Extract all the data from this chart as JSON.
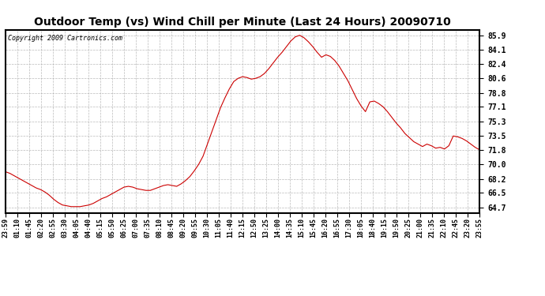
{
  "title": "Outdoor Temp (vs) Wind Chill per Minute (Last 24 Hours) 20090710",
  "copyright_text": "Copyright 2009 Cartronics.com",
  "line_color": "#cc0000",
  "background_color": "#ffffff",
  "plot_bg_color": "#ffffff",
  "grid_color": "#aaaaaa",
  "yticks": [
    64.7,
    66.5,
    68.2,
    70.0,
    71.8,
    73.5,
    75.3,
    77.1,
    78.8,
    80.6,
    82.4,
    84.1,
    85.9
  ],
  "ylim": [
    64.0,
    86.6
  ],
  "xtick_labels": [
    "23:59",
    "01:10",
    "01:45",
    "02:20",
    "02:55",
    "03:30",
    "04:05",
    "04:40",
    "05:15",
    "05:50",
    "06:25",
    "07:00",
    "07:35",
    "08:10",
    "08:45",
    "09:20",
    "09:55",
    "10:30",
    "11:05",
    "11:40",
    "12:15",
    "12:50",
    "13:25",
    "14:00",
    "14:35",
    "15:10",
    "15:45",
    "16:20",
    "16:55",
    "17:30",
    "18:05",
    "18:40",
    "19:15",
    "19:50",
    "20:25",
    "21:00",
    "21:35",
    "22:10",
    "22:45",
    "23:20",
    "23:55"
  ],
  "data_y": [
    69.1,
    68.9,
    68.6,
    68.3,
    68.0,
    67.7,
    67.4,
    67.1,
    66.9,
    66.6,
    66.2,
    65.7,
    65.3,
    65.0,
    64.9,
    64.8,
    64.8,
    64.8,
    64.9,
    65.0,
    65.2,
    65.5,
    65.8,
    66.0,
    66.3,
    66.6,
    66.9,
    67.2,
    67.3,
    67.2,
    67.0,
    66.9,
    66.8,
    66.8,
    67.0,
    67.2,
    67.4,
    67.5,
    67.4,
    67.3,
    67.6,
    68.0,
    68.5,
    69.2,
    70.0,
    71.0,
    72.5,
    74.0,
    75.5,
    77.0,
    78.2,
    79.3,
    80.2,
    80.6,
    80.8,
    80.7,
    80.5,
    80.6,
    80.8,
    81.2,
    81.8,
    82.5,
    83.2,
    83.8,
    84.5,
    85.2,
    85.7,
    85.9,
    85.6,
    85.1,
    84.5,
    83.8,
    83.2,
    83.5,
    83.3,
    82.8,
    82.1,
    81.2,
    80.3,
    79.2,
    78.1,
    77.2,
    76.5,
    77.7,
    77.8,
    77.5,
    77.1,
    76.5,
    75.8,
    75.1,
    74.5,
    73.8,
    73.3,
    72.8,
    72.5,
    72.2,
    72.5,
    72.3,
    72.0,
    72.1,
    71.9,
    72.3,
    73.5,
    73.4,
    73.2,
    72.9,
    72.5,
    72.1,
    71.8
  ]
}
